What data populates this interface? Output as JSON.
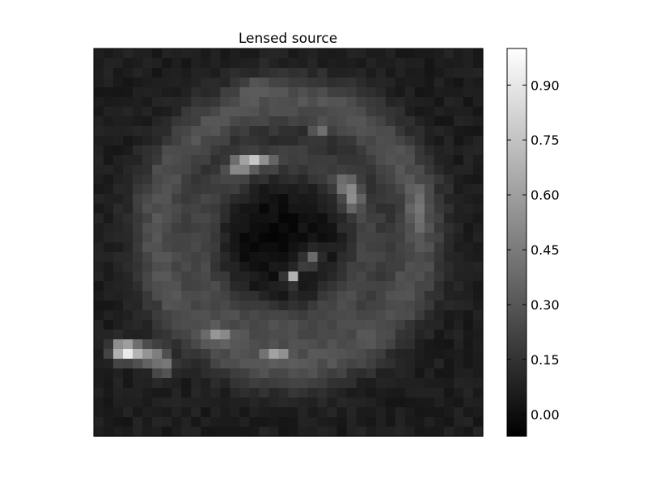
{
  "figure": {
    "background": "#ffffff"
  },
  "chart_data": {
    "type": "heatmap",
    "title": "Lensed source",
    "xlabel": "",
    "ylabel": "",
    "colormap": "gray",
    "grid": false,
    "axes_visible": false,
    "grid_size": [
      40,
      40
    ],
    "vmin": -0.06,
    "vmax": 1.0,
    "colorbar": {
      "ticks": [
        0.0,
        0.15,
        0.3,
        0.45,
        0.6,
        0.75,
        0.9
      ],
      "tick_labels": [
        "0.00",
        "0.15",
        "0.30",
        "0.45",
        "0.60",
        "0.75",
        "0.90"
      ],
      "range": [
        -0.06,
        1.0
      ],
      "placement": "right"
    },
    "image_model": {
      "background_level": 0.06,
      "noise_amplitude": 0.07,
      "outer_ring": {
        "center": [
          0.5,
          0.475
        ],
        "radius": 0.34,
        "width": 0.05,
        "amplitude": 0.22
      },
      "inner_ring": {
        "center": [
          0.49,
          0.5
        ],
        "radius": 0.21,
        "width": 0.04,
        "amplitude": 0.17
      },
      "core_depression": {
        "center": [
          0.45,
          0.46
        ],
        "radius": 0.12,
        "depth": 0.07
      },
      "bright_spots": [
        {
          "x": 0.08,
          "y": 0.78,
          "amplitude": 0.9,
          "sx": 0.025,
          "sy": 0.018
        },
        {
          "x": 0.14,
          "y": 0.79,
          "amplitude": 0.45,
          "sx": 0.025,
          "sy": 0.018
        },
        {
          "x": 0.18,
          "y": 0.82,
          "amplitude": 0.35,
          "sx": 0.02,
          "sy": 0.02
        },
        {
          "x": 0.41,
          "y": 0.29,
          "amplitude": 0.55,
          "sx": 0.03,
          "sy": 0.012
        },
        {
          "x": 0.37,
          "y": 0.31,
          "amplitude": 0.3,
          "sx": 0.02,
          "sy": 0.012
        },
        {
          "x": 0.58,
          "y": 0.21,
          "amplitude": 0.3,
          "sx": 0.012,
          "sy": 0.012
        },
        {
          "x": 0.65,
          "y": 0.35,
          "amplitude": 0.35,
          "sx": 0.012,
          "sy": 0.02
        },
        {
          "x": 0.67,
          "y": 0.39,
          "amplitude": 0.3,
          "sx": 0.012,
          "sy": 0.02
        },
        {
          "x": 0.51,
          "y": 0.59,
          "amplitude": 0.65,
          "sx": 0.012,
          "sy": 0.012
        },
        {
          "x": 0.55,
          "y": 0.55,
          "amplitude": 0.4,
          "sx": 0.012,
          "sy": 0.012
        },
        {
          "x": 0.57,
          "y": 0.53,
          "amplitude": 0.35,
          "sx": 0.012,
          "sy": 0.012
        },
        {
          "x": 0.47,
          "y": 0.79,
          "amplitude": 0.4,
          "sx": 0.02,
          "sy": 0.012
        },
        {
          "x": 0.32,
          "y": 0.74,
          "amplitude": 0.3,
          "sx": 0.025,
          "sy": 0.012
        },
        {
          "x": 0.83,
          "y": 0.42,
          "amplitude": 0.2,
          "sx": 0.012,
          "sy": 0.04
        },
        {
          "x": 0.42,
          "y": 0.1,
          "amplitude": 0.15,
          "sx": 0.03,
          "sy": 0.015
        }
      ]
    }
  }
}
